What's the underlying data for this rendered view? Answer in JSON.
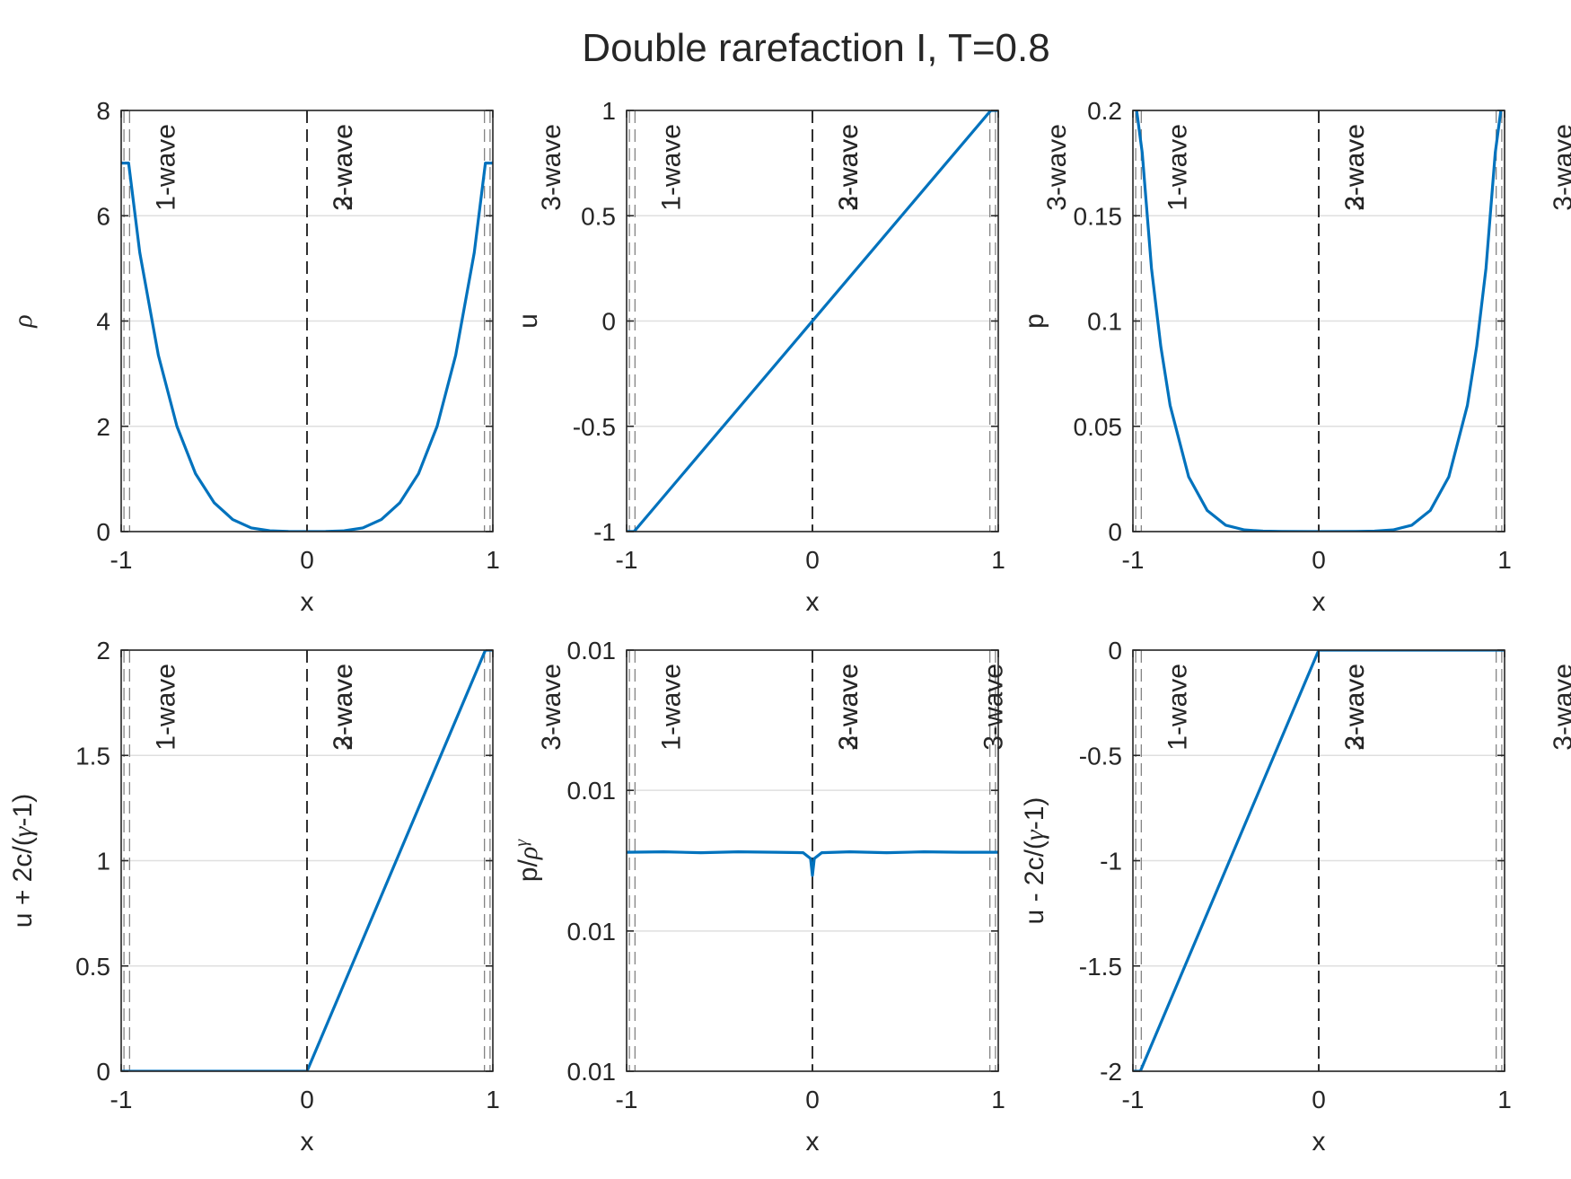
{
  "figure": {
    "title": "Double rarefaction I, T=0.8"
  },
  "style": {
    "line_color": "#0072bd",
    "axis_color": "#262626",
    "grid_color": "#dfdfdf",
    "wave_line_color": "#1a1a1a"
  },
  "chart_data": [
    {
      "type": "line",
      "xlabel": "x",
      "ylabel_parts": [
        {
          "t": "ρ",
          "sym": true
        }
      ],
      "xlim": [
        -1,
        1
      ],
      "ylim": [
        0,
        8
      ],
      "xticks": [
        -1,
        0,
        1
      ],
      "xtick_labels": [
        "-1",
        "0",
        "1"
      ],
      "yticks": [
        0,
        2,
        4,
        6,
        8
      ],
      "ytick_labels": [
        "0",
        "2",
        "4",
        "6",
        "8"
      ],
      "grid": "y",
      "wave_lines": [
        {
          "x": -0.985,
          "style": "light-dash"
        },
        {
          "x": -0.955,
          "style": "light-dash"
        },
        {
          "x": 0,
          "style": "dark-dash"
        },
        {
          "x": 0.955,
          "style": "light-dash"
        },
        {
          "x": 0.985,
          "style": "light-dash"
        }
      ],
      "wave_labels": [
        {
          "text": "1-wave",
          "x": -0.955
        },
        {
          "text": "2-wave",
          "x": 0
        },
        {
          "text": "3-wave",
          "x": 0
        },
        {
          "text": "3-wave",
          "x": 1.12
        }
      ],
      "series": [
        {
          "x": [
            -1,
            -0.96,
            -0.9,
            -0.8,
            -0.7,
            -0.6,
            -0.5,
            -0.4,
            -0.3,
            -0.2,
            -0.1,
            0,
            0.1,
            0.2,
            0.3,
            0.4,
            0.5,
            0.6,
            0.7,
            0.8,
            0.9,
            0.96,
            1
          ],
          "y": [
            7.0,
            7.0,
            5.3,
            3.35,
            2.0,
            1.1,
            0.55,
            0.23,
            0.07,
            0.015,
            0.002,
            0.0,
            0.002,
            0.015,
            0.07,
            0.23,
            0.55,
            1.1,
            2.0,
            3.35,
            5.3,
            7.0,
            7.0
          ]
        }
      ]
    },
    {
      "type": "line",
      "xlabel": "x",
      "ylabel_parts": [
        {
          "t": "u",
          "sym": false
        }
      ],
      "xlim": [
        -1,
        1
      ],
      "ylim": [
        -1,
        1
      ],
      "xticks": [
        -1,
        0,
        1
      ],
      "xtick_labels": [
        "-1",
        "0",
        "1"
      ],
      "yticks": [
        -1,
        -0.5,
        0,
        0.5,
        1
      ],
      "ytick_labels": [
        "-1",
        "-0.5",
        "0",
        "0.5",
        "1"
      ],
      "grid": "y",
      "wave_lines": [
        {
          "x": -0.985,
          "style": "light-dash"
        },
        {
          "x": -0.955,
          "style": "light-dash"
        },
        {
          "x": 0,
          "style": "dark-dash"
        },
        {
          "x": 0.955,
          "style": "light-dash"
        },
        {
          "x": 0.985,
          "style": "light-dash"
        }
      ],
      "wave_labels": [
        {
          "text": "1-wave",
          "x": -0.955
        },
        {
          "text": "2-wave",
          "x": 0
        },
        {
          "text": "3-wave",
          "x": 0
        },
        {
          "text": "3-wave",
          "x": 1.12
        }
      ],
      "series": [
        {
          "x": [
            -1,
            -0.96,
            0.96,
            1
          ],
          "y": [
            -1,
            -1,
            1,
            1
          ]
        }
      ]
    },
    {
      "type": "line",
      "xlabel": "x",
      "ylabel_parts": [
        {
          "t": "p",
          "sym": false
        }
      ],
      "xlim": [
        -1,
        1
      ],
      "ylim": [
        0,
        0.2
      ],
      "xticks": [
        -1,
        0,
        1
      ],
      "xtick_labels": [
        "-1",
        "0",
        "1"
      ],
      "yticks": [
        0,
        0.05,
        0.1,
        0.15,
        0.2
      ],
      "ytick_labels": [
        "0",
        "0.05",
        "0.1",
        "0.15",
        "0.2"
      ],
      "grid": "y",
      "wave_lines": [
        {
          "x": -0.985,
          "style": "light-dash"
        },
        {
          "x": -0.955,
          "style": "light-dash"
        },
        {
          "x": 0,
          "style": "dark-dash"
        },
        {
          "x": 0.955,
          "style": "light-dash"
        },
        {
          "x": 0.985,
          "style": "light-dash"
        }
      ],
      "wave_labels": [
        {
          "text": "1-wave",
          "x": -0.955
        },
        {
          "text": "2-wave",
          "x": 0
        },
        {
          "text": "3-wave",
          "x": 0
        },
        {
          "text": "3-wave",
          "x": 1.12
        }
      ],
      "series": [
        {
          "x": [
            -0.98,
            -0.95,
            -0.9,
            -0.85,
            -0.8,
            -0.7,
            -0.6,
            -0.5,
            -0.4,
            -0.3,
            -0.2,
            0,
            0.2,
            0.3,
            0.4,
            0.5,
            0.6,
            0.7,
            0.8,
            0.85,
            0.9,
            0.95,
            0.98
          ],
          "y": [
            0.2,
            0.18,
            0.125,
            0.088,
            0.06,
            0.026,
            0.01,
            0.003,
            0.0008,
            0.0002,
            5e-05,
            0.0,
            5e-05,
            0.0002,
            0.0008,
            0.003,
            0.01,
            0.026,
            0.06,
            0.088,
            0.125,
            0.18,
            0.2
          ]
        }
      ]
    },
    {
      "type": "line",
      "xlabel": "x",
      "ylabel_parts": [
        {
          "t": "u + 2c/(",
          "sym": false
        },
        {
          "t": "γ",
          "sym": true
        },
        {
          "t": "-1)",
          "sym": false
        }
      ],
      "xlim": [
        -1,
        1
      ],
      "ylim": [
        0,
        2
      ],
      "xticks": [
        -1,
        0,
        1
      ],
      "xtick_labels": [
        "-1",
        "0",
        "1"
      ],
      "yticks": [
        0,
        0.5,
        1,
        1.5,
        2
      ],
      "ytick_labels": [
        "0",
        "0.5",
        "1",
        "1.5",
        "2"
      ],
      "grid": "y",
      "wave_lines": [
        {
          "x": -0.985,
          "style": "light-dash"
        },
        {
          "x": -0.955,
          "style": "light-dash"
        },
        {
          "x": 0,
          "style": "dark-dash"
        },
        {
          "x": 0.955,
          "style": "light-dash"
        },
        {
          "x": 0.985,
          "style": "light-dash"
        }
      ],
      "wave_labels": [
        {
          "text": "1-wave",
          "x": -0.955
        },
        {
          "text": "2-wave",
          "x": 0
        },
        {
          "text": "3-wave",
          "x": 0
        },
        {
          "text": "3-wave",
          "x": 1.12
        }
      ],
      "series": [
        {
          "x": [
            -1,
            0,
            0.96,
            1
          ],
          "y": [
            0,
            0,
            2,
            2
          ]
        }
      ]
    },
    {
      "type": "line",
      "xlabel": "x",
      "ylabel_parts": [
        {
          "t": "p/",
          "sym": false
        },
        {
          "t": "ρ",
          "sym": true
        },
        {
          "t": "γ",
          "sym": true,
          "sup": true
        }
      ],
      "xlim": [
        -1,
        1
      ],
      "ylim": [
        0,
        1
      ],
      "xticks": [
        -1,
        0,
        1
      ],
      "xtick_labels": [
        "-1",
        "0",
        "1"
      ],
      "yticks": [
        0,
        0.333,
        0.667,
        1
      ],
      "ytick_labels": [
        "0.01",
        "0.01",
        "0.01",
        "0.01"
      ],
      "grid": "y",
      "wave_lines": [
        {
          "x": -0.985,
          "style": "light-dash"
        },
        {
          "x": -0.955,
          "style": "light-dash"
        },
        {
          "x": 0,
          "style": "dark-dash"
        },
        {
          "x": 0.955,
          "style": "light-dash"
        },
        {
          "x": 0.985,
          "style": "light-dash"
        }
      ],
      "wave_labels": [
        {
          "text": "1-wave",
          "x": -0.955
        },
        {
          "text": "2-wave",
          "x": 0
        },
        {
          "text": "3-wave",
          "x": 0
        },
        {
          "text": "3-wave",
          "x": 0.78
        }
      ],
      "series": [
        {
          "x": [
            -1,
            -0.8,
            -0.6,
            -0.4,
            -0.2,
            -0.05,
            -0.01,
            0,
            0.01,
            0.05,
            0.2,
            0.4,
            0.6,
            0.8,
            1
          ],
          "y": [
            0.52,
            0.521,
            0.519,
            0.521,
            0.52,
            0.519,
            0.505,
            0.465,
            0.505,
            0.519,
            0.521,
            0.519,
            0.521,
            0.52,
            0.52
          ]
        }
      ]
    },
    {
      "type": "line",
      "xlabel": "x",
      "ylabel_parts": [
        {
          "t": "u - 2c/(",
          "sym": false
        },
        {
          "t": "γ",
          "sym": true
        },
        {
          "t": "-1)",
          "sym": false
        }
      ],
      "xlim": [
        -1,
        1
      ],
      "ylim": [
        -2,
        0
      ],
      "xticks": [
        -1,
        0,
        1
      ],
      "xtick_labels": [
        "-1",
        "0",
        "1"
      ],
      "yticks": [
        -2,
        -1.5,
        -1,
        -0.5,
        0
      ],
      "ytick_labels": [
        "-2",
        "-1.5",
        "-1",
        "-0.5",
        "0"
      ],
      "grid": "y",
      "wave_lines": [
        {
          "x": -0.985,
          "style": "light-dash"
        },
        {
          "x": -0.955,
          "style": "light-dash"
        },
        {
          "x": 0,
          "style": "dark-dash"
        },
        {
          "x": 0.955,
          "style": "light-dash"
        },
        {
          "x": 0.985,
          "style": "light-dash"
        }
      ],
      "wave_labels": [
        {
          "text": "1-wave",
          "x": -0.955
        },
        {
          "text": "2-wave",
          "x": 0
        },
        {
          "text": "3-wave",
          "x": 0
        },
        {
          "text": "3-wave",
          "x": 1.12
        }
      ],
      "series": [
        {
          "x": [
            -1,
            -0.96,
            0,
            1
          ],
          "y": [
            -2,
            -2,
            0,
            0
          ]
        }
      ]
    }
  ]
}
